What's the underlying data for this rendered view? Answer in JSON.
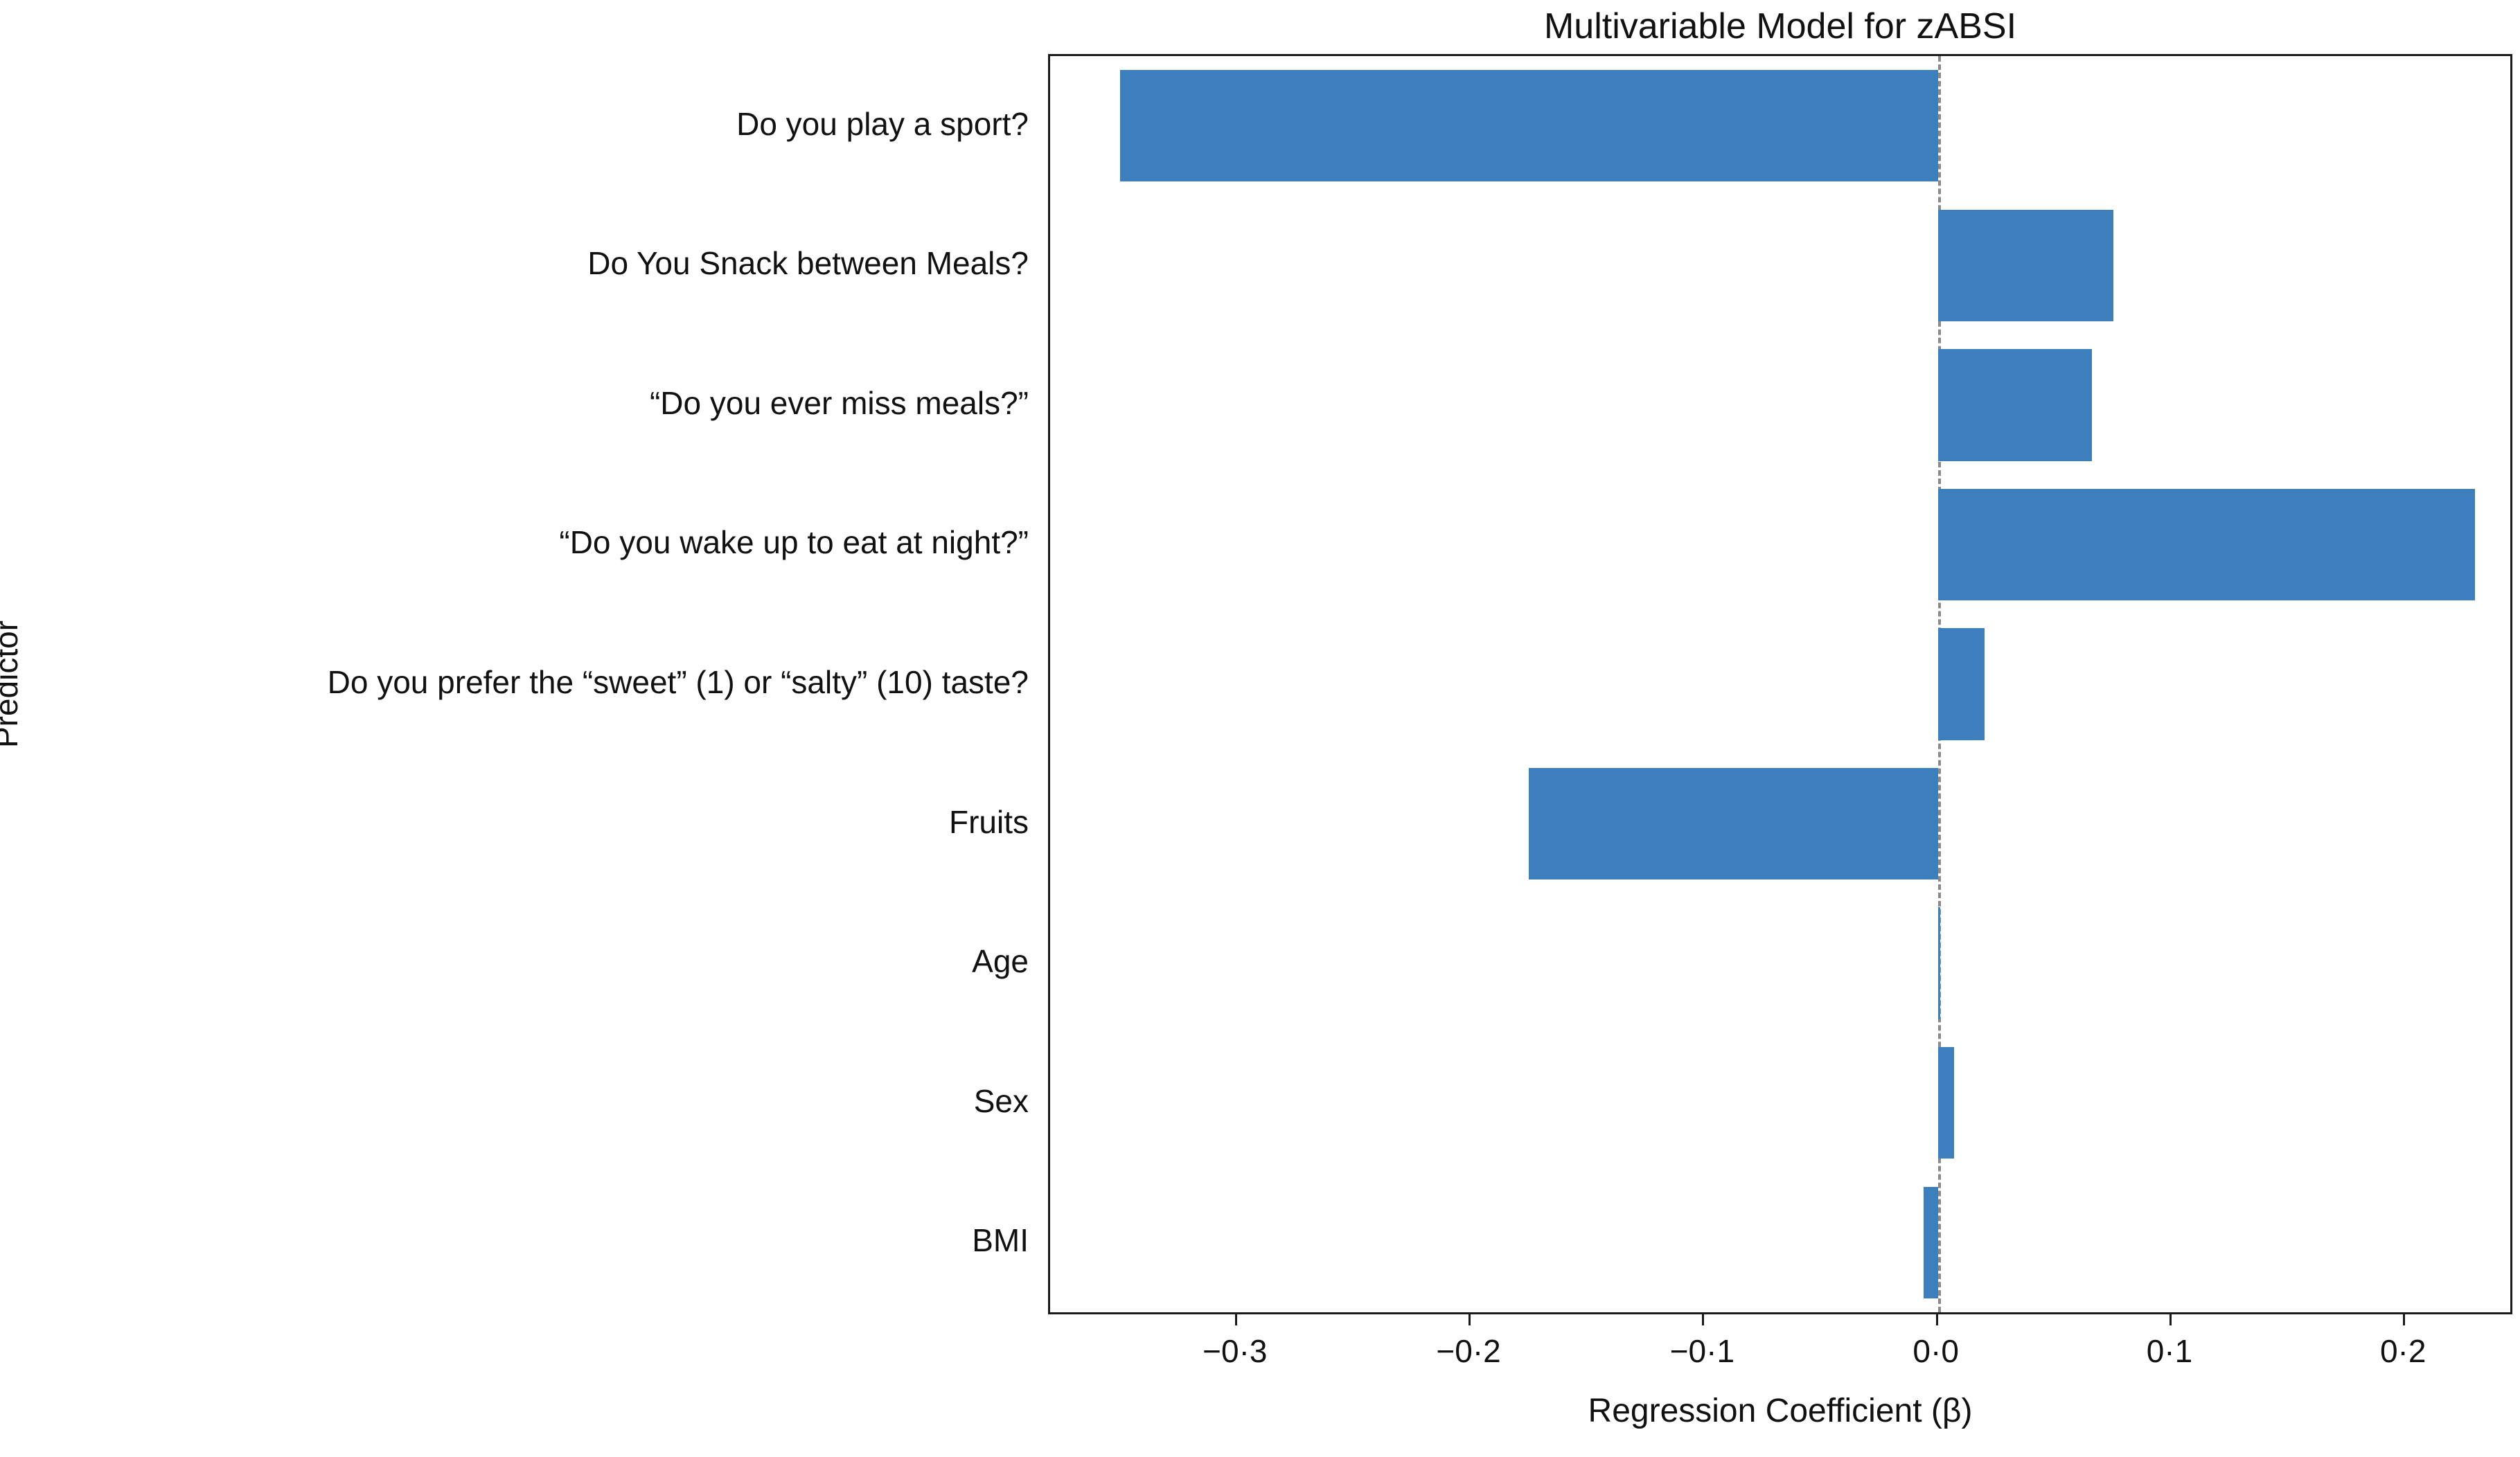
{
  "chart_data": {
    "type": "bar",
    "orientation": "horizontal",
    "title": "Multivariable Model for zABSI",
    "xlabel": "Regression Coefficient (β)",
    "ylabel": "Predictor",
    "categories": [
      "Do you play a sport?",
      "Do You Snack between Meals?",
      "“Do you ever miss meals?”",
      "“Do you wake up to eat at night?”",
      "Do you prefer the “sweet” (1) or “salty” (10) taste?",
      "Fruits",
      "Age",
      "Sex",
      "BMI"
    ],
    "values": [
      -0.35,
      0.075,
      0.066,
      0.23,
      0.02,
      -0.175,
      0.001,
      0.007,
      -0.006
    ],
    "xlim": [
      -0.38,
      0.245
    ],
    "xticks": [
      {
        "value": -0.3,
        "label": "−0·3"
      },
      {
        "value": -0.2,
        "label": "−0·2"
      },
      {
        "value": -0.1,
        "label": "−0·1"
      },
      {
        "value": 0.0,
        "label": "0·0"
      },
      {
        "value": 0.1,
        "label": "0·1"
      },
      {
        "value": 0.2,
        "label": "0·2"
      }
    ],
    "bar_color": "#3d7ebc",
    "zero_line_color": "#8a8a8a",
    "grid": false,
    "legend_position": "none"
  }
}
